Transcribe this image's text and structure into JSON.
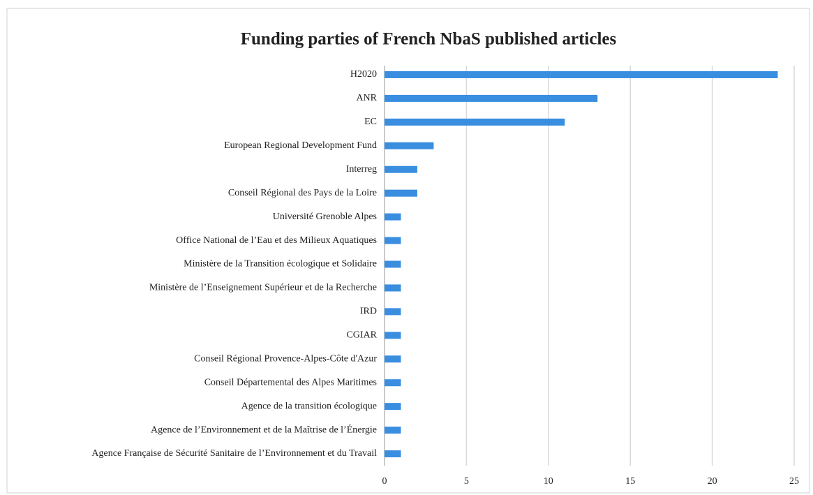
{
  "chart_data": {
    "type": "hbar",
    "title": "Funding parties of French NbaS published articles",
    "categories": [
      "H2020",
      "ANR",
      "EC",
      "European Regional Development Fund",
      "Interreg",
      "Conseil Régional des Pays de la Loire",
      "Université Grenoble Alpes",
      "Office National de l’Eau et des Milieux Aquatiques",
      "Ministère de la Transition écologique et Solidaire",
      "Ministère de l’Enseignement Supérieur et de la Recherche",
      "IRD",
      "CGIAR",
      "Conseil Régional Provence-Alpes-Côte d'Azur",
      "Conseil Départemental des Alpes Maritimes",
      "Agence de la transition écologique",
      "Agence de l’Environnement et de la Maîtrise de l’Énergie",
      "Agence Française de Sécurité Sanitaire de l’Environnement et du Travail"
    ],
    "values": [
      24,
      13,
      11,
      3,
      2,
      2,
      1,
      1,
      1,
      1,
      1,
      1,
      1,
      1,
      1,
      1,
      1
    ],
    "color": "#3a8ee0",
    "xlim": [
      0,
      25
    ],
    "xticks": [
      0,
      5,
      10,
      15,
      20,
      25
    ],
    "grid": true
  }
}
